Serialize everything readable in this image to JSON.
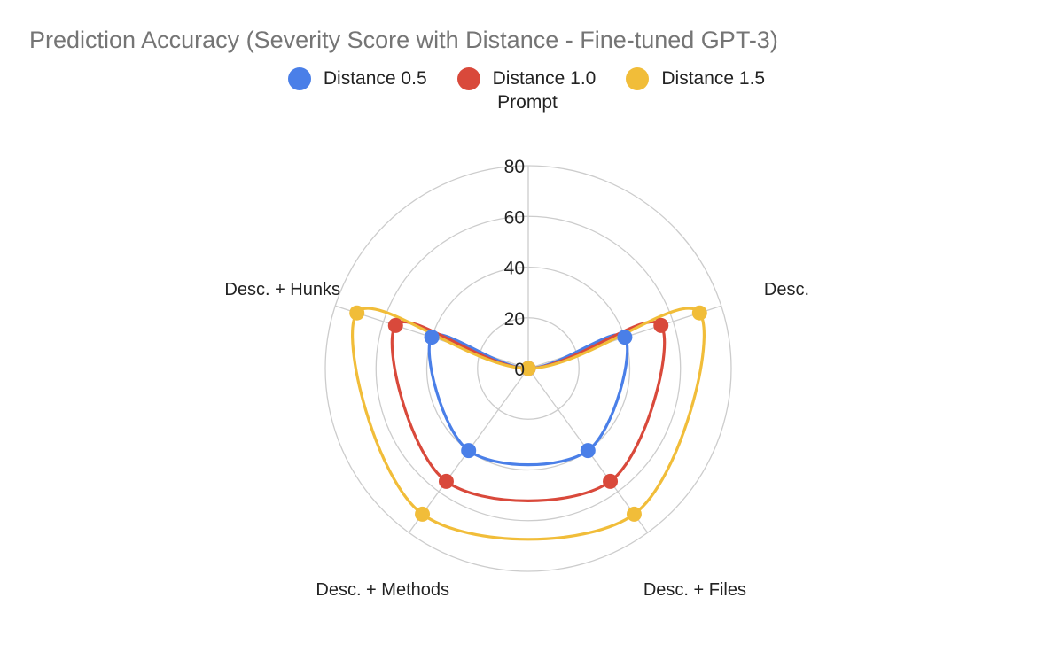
{
  "chart_data": {
    "type": "radar",
    "title": "Prediction Accuracy (Severity Score with Distance - Fine-tuned GPT-3)",
    "axis_title": "Prompt",
    "categories": [
      "Prompt",
      "Desc.",
      "Desc. + Files",
      "Desc. + Methods",
      "Desc. + Hunks"
    ],
    "series": [
      {
        "name": "Distance 0.5",
        "color": "#4a7fe8",
        "values": [
          0,
          40,
          40,
          40,
          40
        ]
      },
      {
        "name": "Distance 1.0",
        "color": "#d9493b",
        "values": [
          0,
          55,
          55,
          55,
          55
        ]
      },
      {
        "name": "Distance 1.5",
        "color": "#f1bd39",
        "values": [
          0,
          71,
          71,
          71,
          71
        ]
      }
    ],
    "r_ticks": [
      0,
      20,
      40,
      60,
      80
    ],
    "rlim": [
      0,
      80
    ],
    "grid": true,
    "legend_position": "top"
  }
}
